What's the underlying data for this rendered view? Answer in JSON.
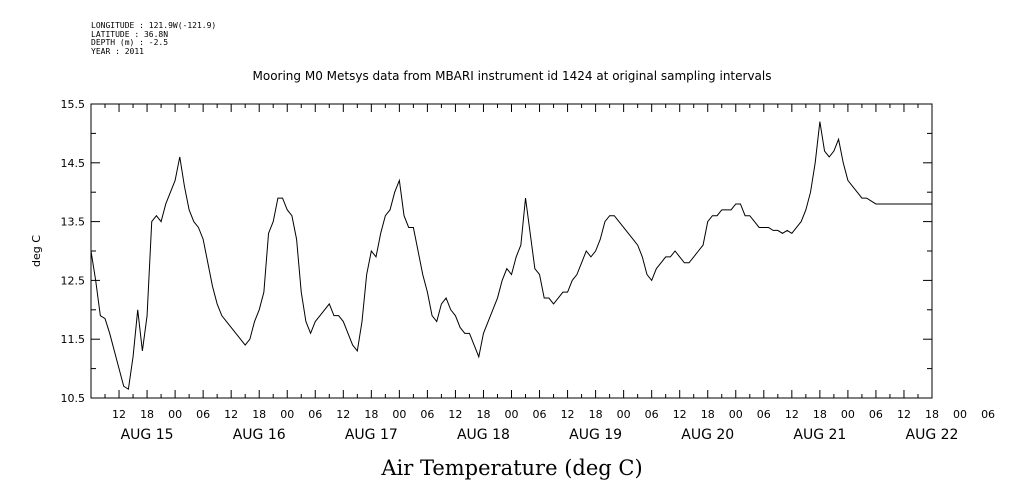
{
  "header": {
    "longitude": "LONGITUDE : 121.9W(-121.9)",
    "latitude": "LATITUDE : 36.8N",
    "depth": "DEPTH (m) : -2.5",
    "year": "YEAR : 2011"
  },
  "chart_data": {
    "type": "line",
    "title": "Mooring M0 Metsys data from MBARI instrument id 1424 at original sampling intervals",
    "xlabel": "Air Temperature (deg C)",
    "ylabel": "deg C",
    "ylim": [
      10.5,
      15.5
    ],
    "yticks": [
      "10.5",
      "11.5",
      "12.5",
      "13.5",
      "14.5",
      "15.5"
    ],
    "xlim_hours": [
      0,
      180
    ],
    "hour_tick_labels": [
      "12",
      "18",
      "00",
      "06",
      "12",
      "18",
      "00",
      "06",
      "12",
      "18",
      "00",
      "06",
      "12",
      "18",
      "00",
      "06",
      "12",
      "18",
      "00",
      "06",
      "12",
      "18",
      "00",
      "06",
      "12",
      "18",
      "00",
      "06",
      "12",
      "18",
      "00",
      "06"
    ],
    "day_labels": [
      "AUG 15",
      "AUG 16",
      "AUG 17",
      "AUG 18",
      "AUG 19",
      "AUG 20",
      "AUG 21",
      "AUG 22"
    ],
    "grid": false,
    "series": [
      {
        "color": "#000000",
        "x": [
          0,
          1,
          2,
          3,
          4,
          5,
          6,
          7,
          8,
          9,
          10,
          11,
          12,
          13,
          14,
          15,
          16,
          17,
          18,
          19,
          20,
          21,
          22,
          23,
          24,
          25,
          26,
          27,
          28,
          29,
          30,
          31,
          32,
          33,
          34,
          35,
          36,
          37,
          38,
          39,
          40,
          41,
          42,
          43,
          44,
          45,
          46,
          47,
          48,
          49,
          50,
          51,
          52,
          53,
          54,
          55,
          56,
          57,
          58,
          59,
          60,
          61,
          62,
          63,
          64,
          65,
          66,
          67,
          68,
          69,
          70,
          71,
          72,
          73,
          74,
          75,
          76,
          77,
          78,
          79,
          80,
          81,
          82,
          83,
          84,
          85,
          86,
          87,
          88,
          89,
          90,
          91,
          92,
          93,
          94,
          95,
          96,
          97,
          98,
          99,
          100,
          101,
          102,
          103,
          104,
          105,
          106,
          107,
          108,
          109,
          110,
          111,
          112,
          113,
          114,
          115,
          116,
          117,
          118,
          119,
          120,
          121,
          122,
          123,
          124,
          125,
          126,
          127,
          128,
          129,
          130,
          131,
          132,
          133,
          134,
          135,
          136,
          137,
          138,
          139,
          140,
          141,
          142,
          143,
          144,
          145,
          146,
          147,
          148,
          149,
          150,
          151,
          152,
          153,
          154,
          155,
          156,
          157,
          158,
          159,
          160,
          161,
          162,
          163,
          164,
          165,
          166,
          167,
          168,
          169,
          170,
          171,
          172,
          173,
          174,
          175,
          176,
          177,
          178,
          179,
          180
        ],
        "y": [
          13.0,
          12.5,
          11.9,
          11.85,
          11.6,
          11.3,
          11.0,
          10.7,
          10.65,
          11.2,
          12.0,
          11.3,
          11.9,
          13.5,
          13.6,
          13.5,
          13.8,
          14.0,
          14.2,
          14.6,
          14.1,
          13.7,
          13.5,
          13.4,
          13.2,
          12.8,
          12.4,
          12.1,
          11.9,
          11.8,
          11.7,
          11.6,
          11.5,
          11.4,
          11.5,
          11.8,
          12.0,
          12.3,
          13.3,
          13.5,
          13.9,
          13.9,
          13.7,
          13.6,
          13.2,
          12.3,
          11.8,
          11.6,
          11.8,
          11.9,
          12.0,
          12.1,
          11.9,
          11.9,
          11.8,
          11.6,
          11.4,
          11.3,
          11.8,
          12.6,
          13.0,
          12.9,
          13.3,
          13.6,
          13.7,
          14.0,
          14.2,
          13.6,
          13.4,
          13.4,
          13.0,
          12.6,
          12.3,
          11.9,
          11.8,
          12.1,
          12.2,
          12.0,
          11.9,
          11.7,
          11.6,
          11.6,
          11.4,
          11.2,
          11.6,
          11.8,
          12.0,
          12.2,
          12.5,
          12.7,
          12.6,
          12.9,
          13.1,
          13.9,
          13.3,
          12.7,
          12.6,
          12.2,
          12.2,
          12.1,
          12.2,
          12.3,
          12.3,
          12.5,
          12.6,
          12.8,
          13.0,
          12.9,
          13.0,
          13.2,
          13.5,
          13.6,
          13.6,
          13.5,
          13.4,
          13.3,
          13.2,
          13.1,
          12.9,
          12.6,
          12.5,
          12.7,
          12.8,
          12.9,
          12.9,
          13.0,
          12.9,
          12.8,
          12.8,
          12.9,
          13.0,
          13.1,
          13.5,
          13.6,
          13.6,
          13.7,
          13.7,
          13.7,
          13.8,
          13.8,
          13.6,
          13.6,
          13.5,
          13.4,
          13.4,
          13.4,
          13.35,
          13.35,
          13.3,
          13.35,
          13.3,
          13.4,
          13.5,
          13.7,
          14.0,
          14.5,
          15.2,
          14.7,
          14.6,
          14.7,
          14.9,
          14.5,
          14.2,
          14.1,
          14.0,
          13.9,
          13.9,
          13.85,
          13.8,
          13.8,
          13.8,
          13.8,
          13.8,
          13.8,
          13.8,
          13.8,
          13.8,
          13.8,
          13.8,
          13.8,
          13.8
        ]
      }
    ]
  }
}
